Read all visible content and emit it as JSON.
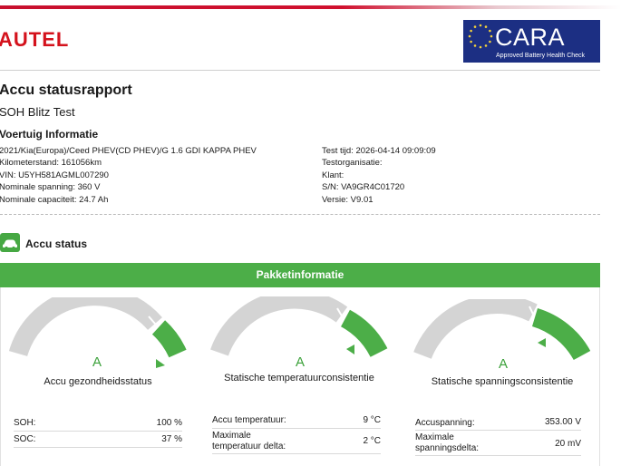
{
  "header": {
    "brand": "AUTEL",
    "badge_name": "CARA",
    "badge_sub": "Approved Battery Health Check"
  },
  "report": {
    "title": "Accu statusrapport",
    "subtitle": "SOH Blitz Test"
  },
  "vehicle": {
    "heading": "Voertuig Informatie",
    "left": [
      "2021/Kia(Europa)/Ceed PHEV(CD PHEV)/G 1.6 GDI KAPPA PHEV",
      "Kilometerstand: 161056km",
      "VIN: U5YH581AGML007290",
      "Nominale spanning: 360 V",
      "Nominale capaciteit: 24.7 Ah"
    ],
    "right": [
      "Test tijd: 2026-04-14 09:09:09",
      "Testorganisatie:",
      "Klant:",
      "S/N: VA9GR4C01720",
      "Versie: V9.01"
    ]
  },
  "status": {
    "heading": "Accu status",
    "panel_title": "Pakketinformatie",
    "colors": {
      "green": "#4cae48",
      "gray": "#d4d4d4"
    },
    "gauges": [
      {
        "grade": "A",
        "label": "Accu gezondheidsstatus",
        "rows": [
          {
            "k": "SOH:",
            "v": "100 %"
          },
          {
            "k": "SOC:",
            "v": "37 %"
          }
        ]
      },
      {
        "grade": "A",
        "label": "Statische temperatuurconsistentie",
        "rows": [
          {
            "k": "Accu temperatuur:",
            "v": "9 °C"
          },
          {
            "k": "Maximale\ntemperatuur delta:",
            "v": "2 °C"
          }
        ]
      },
      {
        "grade": "A",
        "label": "Statische spanningsconsistentie",
        "rows": [
          {
            "k": "Accuspanning:",
            "v": "353.00 V"
          },
          {
            "k": "Maximale\nspanningsdelta:",
            "v": "20 mV"
          }
        ]
      }
    ]
  }
}
